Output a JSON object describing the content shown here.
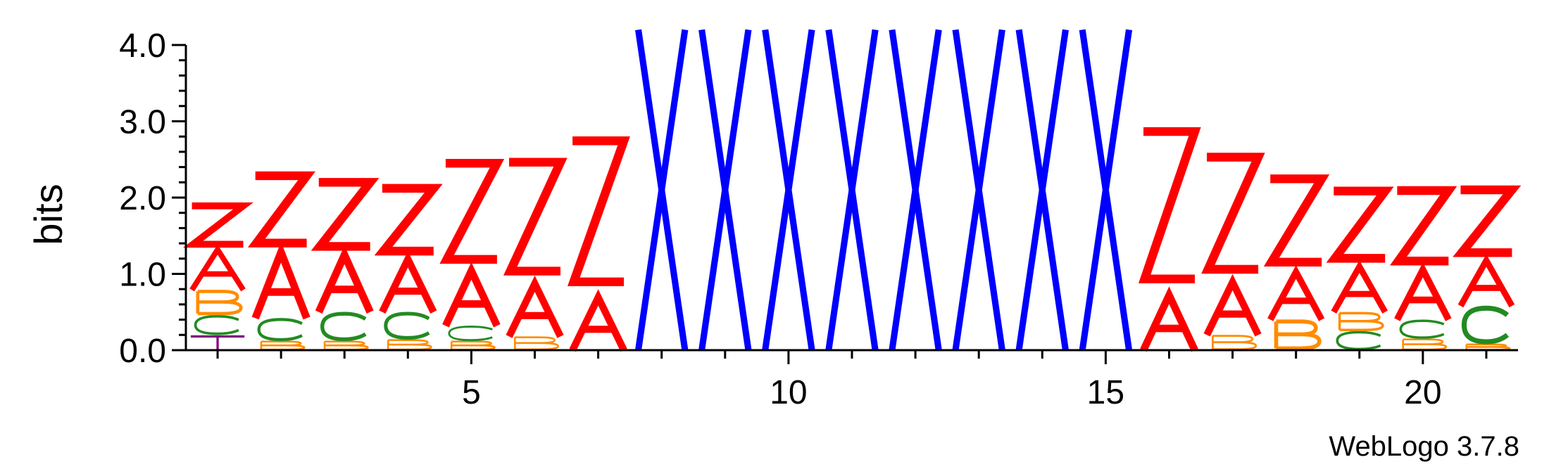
{
  "chart_data": {
    "type": "sequence-logo",
    "ylabel": "bits",
    "ylim": [
      0,
      4.2
    ],
    "y_ticks": [
      "0.0",
      "1.0",
      "2.0",
      "3.0",
      "4.0"
    ],
    "y_tick_values": [
      0,
      1,
      2,
      3,
      4
    ],
    "x_ticks": [
      "5",
      "10",
      "15",
      "20"
    ],
    "x_tick_values": [
      5,
      10,
      15,
      20
    ],
    "x_range": [
      0.5,
      21.5
    ],
    "credit": "WebLogo 3.7.8",
    "colors": {
      "Z": "#ff0000",
      "A": "#ff0000",
      "X": "#0000ff",
      "B": "#ff8c00",
      "C": "#228b22",
      "T": "#800080"
    },
    "positions": [
      {
        "pos": 1,
        "stack": [
          {
            "letter": "T",
            "bits": 0.2
          },
          {
            "letter": "C",
            "bits": 0.26
          },
          {
            "letter": "B",
            "bits": 0.33
          },
          {
            "letter": "A",
            "bits": 0.55
          },
          {
            "letter": "Z",
            "bits": 0.6
          }
        ]
      },
      {
        "pos": 2,
        "stack": [
          {
            "letter": "B",
            "bits": 0.12
          },
          {
            "letter": "C",
            "bits": 0.3
          },
          {
            "letter": "A",
            "bits": 0.9
          },
          {
            "letter": "Z",
            "bits": 1.05
          }
        ]
      },
      {
        "pos": 3,
        "stack": [
          {
            "letter": "B",
            "bits": 0.12
          },
          {
            "letter": "C",
            "bits": 0.38
          },
          {
            "letter": "A",
            "bits": 0.78
          },
          {
            "letter": "Z",
            "bits": 1.0
          }
        ]
      },
      {
        "pos": 4,
        "stack": [
          {
            "letter": "B",
            "bits": 0.14
          },
          {
            "letter": "C",
            "bits": 0.36
          },
          {
            "letter": "A",
            "bits": 0.72
          },
          {
            "letter": "Z",
            "bits": 0.98
          }
        ]
      },
      {
        "pos": 5,
        "stack": [
          {
            "letter": "B",
            "bits": 0.12
          },
          {
            "letter": "C",
            "bits": 0.2
          },
          {
            "letter": "A",
            "bits": 0.75
          },
          {
            "letter": "Z",
            "bits": 1.5
          }
        ]
      },
      {
        "pos": 6,
        "stack": [
          {
            "letter": "B",
            "bits": 0.18
          },
          {
            "letter": "A",
            "bits": 0.72
          },
          {
            "letter": "Z",
            "bits": 1.7
          }
        ]
      },
      {
        "pos": 7,
        "stack": [
          {
            "letter": "A",
            "bits": 0.72
          },
          {
            "letter": "Z",
            "bits": 2.2
          }
        ]
      },
      {
        "pos": 8,
        "stack": [
          {
            "letter": "X",
            "bits": 4.2
          }
        ]
      },
      {
        "pos": 9,
        "stack": [
          {
            "letter": "X",
            "bits": 4.2
          }
        ]
      },
      {
        "pos": 10,
        "stack": [
          {
            "letter": "X",
            "bits": 4.2
          }
        ]
      },
      {
        "pos": 11,
        "stack": [
          {
            "letter": "X",
            "bits": 4.2
          }
        ]
      },
      {
        "pos": 12,
        "stack": [
          {
            "letter": "X",
            "bits": 4.2
          }
        ]
      },
      {
        "pos": 13,
        "stack": [
          {
            "letter": "X",
            "bits": 4.2
          }
        ]
      },
      {
        "pos": 14,
        "stack": [
          {
            "letter": "X",
            "bits": 4.2
          }
        ]
      },
      {
        "pos": 15,
        "stack": [
          {
            "letter": "X",
            "bits": 4.2
          }
        ]
      },
      {
        "pos": 16,
        "stack": [
          {
            "letter": "A",
            "bits": 0.75
          },
          {
            "letter": "Z",
            "bits": 2.3
          }
        ]
      },
      {
        "pos": 17,
        "stack": [
          {
            "letter": "B",
            "bits": 0.2
          },
          {
            "letter": "A",
            "bits": 0.72
          },
          {
            "letter": "Z",
            "bits": 1.75
          }
        ]
      },
      {
        "pos": 18,
        "stack": [
          {
            "letter": "B",
            "bits": 0.4
          },
          {
            "letter": "A",
            "bits": 0.65
          },
          {
            "letter": "Z",
            "bits": 1.3
          }
        ]
      },
      {
        "pos": 19,
        "stack": [
          {
            "letter": "C",
            "bits": 0.25
          },
          {
            "letter": "B",
            "bits": 0.25
          },
          {
            "letter": "A",
            "bits": 0.62
          },
          {
            "letter": "Z",
            "bits": 1.05
          }
        ]
      },
      {
        "pos": 20,
        "stack": [
          {
            "letter": "B",
            "bits": 0.15
          },
          {
            "letter": "C",
            "bits": 0.25
          },
          {
            "letter": "A",
            "bits": 0.68
          },
          {
            "letter": "Z",
            "bits": 1.1
          }
        ]
      },
      {
        "pos": 21,
        "stack": [
          {
            "letter": "B",
            "bits": 0.08
          },
          {
            "letter": "C",
            "bits": 0.5
          },
          {
            "letter": "A",
            "bits": 0.62
          },
          {
            "letter": "Z",
            "bits": 0.98
          }
        ]
      }
    ]
  }
}
